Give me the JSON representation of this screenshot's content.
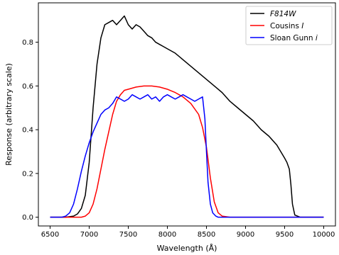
{
  "chart_data": {
    "type": "line",
    "xlabel": "Wavelength (Å)",
    "ylabel": "Response (arbitrary scale)",
    "xlim": [
      6350,
      10150
    ],
    "ylim": [
      -0.04,
      0.98
    ],
    "xticks": [
      6500,
      7000,
      7500,
      8000,
      8500,
      9000,
      9500,
      10000
    ],
    "yticks": [
      0.0,
      0.2,
      0.4,
      0.6,
      0.8
    ],
    "ytick_labels": [
      "0.0",
      "0.2",
      "0.4",
      "0.6",
      "0.8"
    ],
    "grid": false,
    "legend_position": "top-right",
    "series": [
      {
        "name": "F814W",
        "name_style": "italic",
        "color": "#000000",
        "x": [
          6500,
          6700,
          6800,
          6850,
          6900,
          6950,
          7000,
          7050,
          7100,
          7150,
          7200,
          7250,
          7300,
          7350,
          7400,
          7450,
          7500,
          7550,
          7600,
          7650,
          7700,
          7750,
          7800,
          7850,
          7900,
          7950,
          8000,
          8100,
          8200,
          8300,
          8400,
          8500,
          8600,
          8700,
          8800,
          8900,
          9000,
          9100,
          9200,
          9300,
          9400,
          9450,
          9500,
          9530,
          9560,
          9580,
          9600,
          9630,
          9700,
          10000
        ],
        "y": [
          0.0,
          0.0,
          0.005,
          0.015,
          0.04,
          0.1,
          0.25,
          0.5,
          0.7,
          0.82,
          0.88,
          0.89,
          0.9,
          0.88,
          0.9,
          0.92,
          0.88,
          0.86,
          0.88,
          0.87,
          0.85,
          0.83,
          0.82,
          0.8,
          0.79,
          0.78,
          0.77,
          0.75,
          0.72,
          0.69,
          0.66,
          0.63,
          0.6,
          0.57,
          0.53,
          0.5,
          0.47,
          0.44,
          0.4,
          0.37,
          0.33,
          0.3,
          0.27,
          0.25,
          0.22,
          0.15,
          0.06,
          0.01,
          0.0,
          0.0
        ]
      },
      {
        "name": "Cousins",
        "name_suffix": "I",
        "color": "#ff0000",
        "x": [
          6500,
          6900,
          6950,
          7000,
          7050,
          7100,
          7150,
          7200,
          7250,
          7300,
          7350,
          7400,
          7450,
          7500,
          7600,
          7700,
          7800,
          7900,
          8000,
          8100,
          8200,
          8300,
          8400,
          8450,
          8500,
          8550,
          8600,
          8650,
          8700,
          8800,
          10000
        ],
        "y": [
          0.0,
          0.0,
          0.005,
          0.02,
          0.06,
          0.13,
          0.22,
          0.31,
          0.39,
          0.47,
          0.53,
          0.56,
          0.58,
          0.585,
          0.595,
          0.6,
          0.6,
          0.595,
          0.585,
          0.57,
          0.55,
          0.52,
          0.47,
          0.41,
          0.32,
          0.18,
          0.07,
          0.02,
          0.005,
          0.0,
          0.0
        ]
      },
      {
        "name": "Sloan Gunn",
        "name_suffix": "i",
        "color": "#0000ff",
        "x": [
          6500,
          6650,
          6700,
          6750,
          6800,
          6850,
          6900,
          6950,
          7000,
          7050,
          7100,
          7150,
          7200,
          7250,
          7300,
          7350,
          7400,
          7450,
          7500,
          7550,
          7600,
          7650,
          7700,
          7750,
          7800,
          7850,
          7900,
          7950,
          8000,
          8050,
          8100,
          8150,
          8200,
          8250,
          8300,
          8350,
          8400,
          8450,
          8480,
          8500,
          8520,
          8550,
          8580,
          8620,
          8650,
          10000
        ],
        "y": [
          0.0,
          0.0,
          0.005,
          0.02,
          0.06,
          0.13,
          0.21,
          0.28,
          0.34,
          0.39,
          0.43,
          0.47,
          0.49,
          0.5,
          0.52,
          0.55,
          0.54,
          0.53,
          0.54,
          0.56,
          0.55,
          0.54,
          0.55,
          0.56,
          0.54,
          0.55,
          0.53,
          0.55,
          0.56,
          0.55,
          0.54,
          0.55,
          0.56,
          0.55,
          0.54,
          0.53,
          0.54,
          0.55,
          0.45,
          0.3,
          0.16,
          0.06,
          0.02,
          0.005,
          0.0,
          0.0
        ]
      }
    ]
  }
}
